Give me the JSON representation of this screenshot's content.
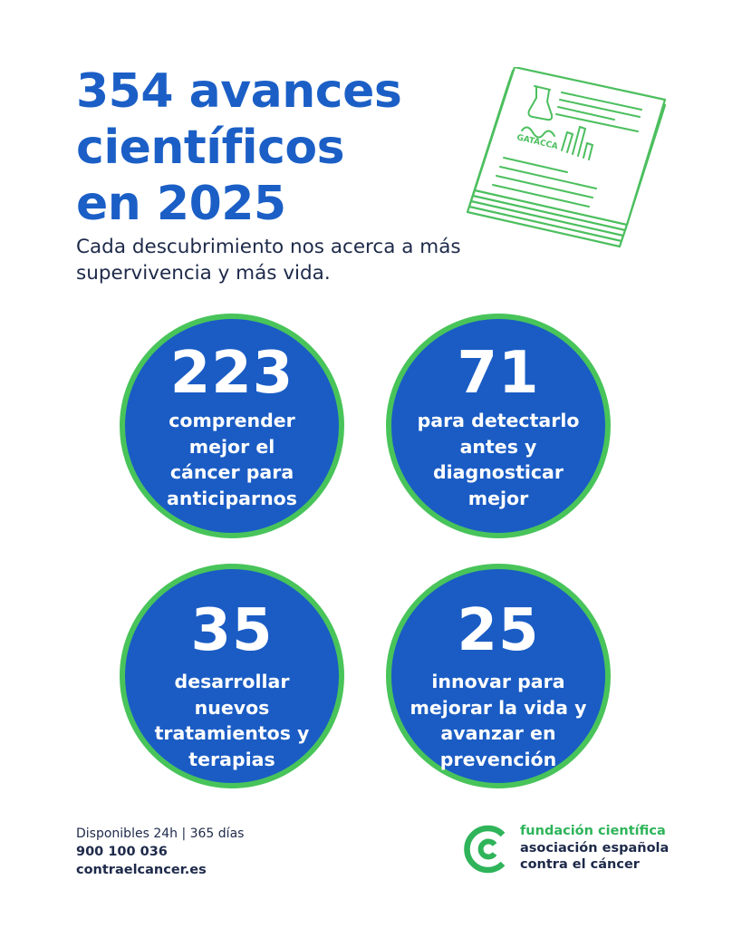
{
  "header": {
    "title_lines": [
      "354 avances",
      "científicos",
      "en 2025"
    ],
    "subtitle_lines": [
      "Cada descubrimiento nos acerca a más",
      "supervivencia y más vida."
    ]
  },
  "illustration": {
    "icon": "research-papers-icon",
    "paper_label": "GATACCA"
  },
  "stats": [
    {
      "number": "223",
      "lines": [
        "comprender",
        "mejor el",
        "cáncer para",
        "anticiparnos"
      ]
    },
    {
      "number": "71",
      "lines": [
        "para detectarlo",
        "antes y",
        "diagnosticar",
        "mejor"
      ]
    },
    {
      "number": "35",
      "lines": [
        "desarrollar",
        "nuevos",
        "tratamientos y",
        "terapias"
      ]
    },
    {
      "number": "25",
      "lines": [
        "innovar para",
        "mejorar la vida y",
        "avanzar en",
        "prevención"
      ]
    }
  ],
  "contact": {
    "hours": "Disponibles 24h | 365 días",
    "phone": "900 100 036",
    "website": "contraelcancer.es"
  },
  "logo": {
    "icon": "aecc-logo-icon",
    "lines": [
      "fundación científica",
      "asociación española",
      "contra el cáncer"
    ]
  },
  "colors": {
    "brand_blue": "#1a5cc4",
    "title_blue": "#1b5fc6",
    "brand_green": "#48c45a",
    "text_dark": "#1e2a4a"
  }
}
